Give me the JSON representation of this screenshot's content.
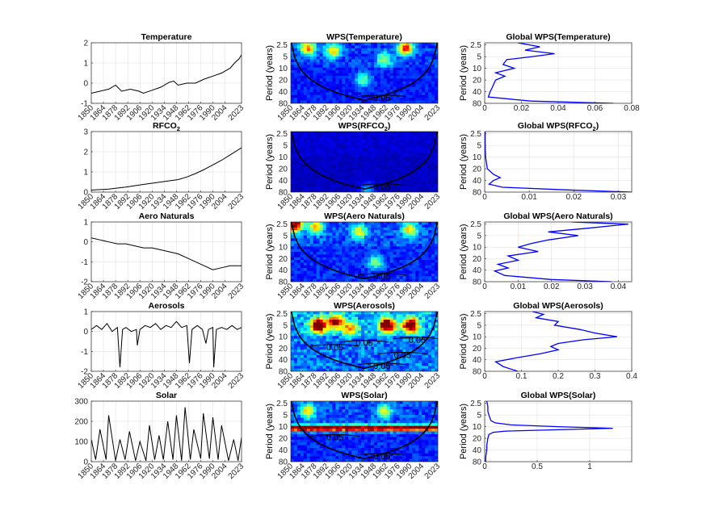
{
  "figure": {
    "background": "#ffffff",
    "colors": {
      "series": "#000000",
      "gws": "#0000ff",
      "grid": "#dcdcdc",
      "coi": "#000000",
      "contour": "#000000"
    }
  },
  "chart_data": [
    {
      "id": "ts-temperature",
      "type": "line",
      "panel": "time-series",
      "title": "Temperature",
      "xlabel": "",
      "ylabel": "",
      "xlim": [
        1850,
        2023
      ],
      "ylim": [
        -1,
        2
      ],
      "xticks": [
        1850,
        1864,
        1878,
        1892,
        1906,
        1920,
        1934,
        1948,
        1962,
        1976,
        1990,
        2004,
        2023
      ],
      "yticks": [
        -1,
        0,
        1,
        2
      ],
      "series": [
        {
          "name": "Temperature",
          "x": [
            1850,
            1860,
            1870,
            1878,
            1885,
            1895,
            1905,
            1910,
            1920,
            1930,
            1940,
            1945,
            1950,
            1960,
            1970,
            1980,
            1990,
            2000,
            2010,
            2015,
            2020,
            2023
          ],
          "values": [
            -0.5,
            -0.4,
            -0.3,
            -0.1,
            -0.4,
            -0.3,
            -0.4,
            -0.5,
            -0.35,
            -0.2,
            0.05,
            0.1,
            -0.1,
            0.0,
            0.0,
            0.2,
            0.35,
            0.5,
            0.75,
            1.0,
            1.2,
            1.4
          ]
        }
      ]
    },
    {
      "id": "ts-rfco2",
      "type": "line",
      "panel": "time-series",
      "title": "RFCO",
      "title_sub": "2",
      "xlabel": "",
      "ylabel": "",
      "xlim": [
        1850,
        2023
      ],
      "ylim": [
        0,
        3
      ],
      "xticks": [
        1850,
        1864,
        1878,
        1892,
        1906,
        1920,
        1934,
        1948,
        1962,
        1976,
        1990,
        2004,
        2023
      ],
      "yticks": [
        0,
        1,
        2,
        3
      ],
      "series": [
        {
          "name": "RFCO2",
          "x": [
            1850,
            1870,
            1890,
            1910,
            1930,
            1950,
            1960,
            1970,
            1980,
            1990,
            2000,
            2010,
            2023
          ],
          "values": [
            0.1,
            0.15,
            0.25,
            0.38,
            0.5,
            0.62,
            0.75,
            0.92,
            1.12,
            1.35,
            1.58,
            1.85,
            2.2
          ]
        }
      ]
    },
    {
      "id": "ts-aero-naturals",
      "type": "line",
      "panel": "time-series",
      "title": "Aero Naturals",
      "xlabel": "",
      "ylabel": "",
      "xlim": [
        1850,
        2023
      ],
      "ylim": [
        -2,
        1
      ],
      "xticks": [
        1850,
        1864,
        1878,
        1892,
        1906,
        1920,
        1934,
        1948,
        1962,
        1976,
        1990,
        2004,
        2023
      ],
      "yticks": [
        -2,
        -1,
        0,
        1
      ],
      "series": [
        {
          "name": "Aero Naturals",
          "x": [
            1850,
            1860,
            1870,
            1880,
            1890,
            1900,
            1910,
            1920,
            1930,
            1940,
            1950,
            1960,
            1970,
            1980,
            1990,
            2000,
            2010,
            2023
          ],
          "values": [
            0.2,
            0.1,
            0.0,
            -0.1,
            -0.1,
            -0.2,
            -0.3,
            -0.3,
            -0.4,
            -0.5,
            -0.6,
            -0.8,
            -1.0,
            -1.2,
            -1.4,
            -1.3,
            -1.2,
            -1.2
          ]
        }
      ]
    },
    {
      "id": "ts-aerosols",
      "type": "line",
      "panel": "time-series",
      "title": "Aerosols",
      "xlabel": "",
      "ylabel": "",
      "xlim": [
        1850,
        2023
      ],
      "ylim": [
        -2,
        1
      ],
      "xticks": [
        1850,
        1864,
        1878,
        1892,
        1906,
        1920,
        1934,
        1948,
        1962,
        1976,
        1990,
        2004,
        2023
      ],
      "yticks": [
        -2,
        -1,
        0,
        1
      ],
      "series": [
        {
          "name": "Aerosols",
          "x": [
            1850,
            1856,
            1862,
            1868,
            1874,
            1880,
            1883,
            1886,
            1890,
            1896,
            1902,
            1903,
            1906,
            1912,
            1918,
            1924,
            1930,
            1936,
            1942,
            1948,
            1954,
            1960,
            1963,
            1966,
            1972,
            1978,
            1982,
            1985,
            1990,
            1991,
            1994,
            2000,
            2006,
            2012,
            2018,
            2023
          ],
          "values": [
            0.1,
            0.3,
            0.1,
            0.4,
            0.0,
            0.2,
            -1.8,
            0.1,
            0.2,
            0.0,
            0.1,
            -0.7,
            0.1,
            0.3,
            0.2,
            0.4,
            0.1,
            0.3,
            0.2,
            0.5,
            0.2,
            0.3,
            -1.6,
            0.1,
            0.3,
            0.1,
            -0.6,
            0.1,
            0.2,
            -1.8,
            0.1,
            0.2,
            0.1,
            0.3,
            0.1,
            0.2
          ]
        }
      ]
    },
    {
      "id": "ts-solar",
      "type": "line",
      "panel": "time-series",
      "title": "Solar",
      "xlabel": "",
      "ylabel": "",
      "xlim": [
        1850,
        2023
      ],
      "ylim": [
        0,
        300
      ],
      "xticks": [
        1850,
        1864,
        1878,
        1892,
        1906,
        1920,
        1934,
        1948,
        1962,
        1976,
        1990,
        2004,
        2023
      ],
      "yticks": [
        0,
        100,
        200,
        300
      ],
      "series": [
        {
          "name": "Solar",
          "x": [
            1850,
            1855,
            1860,
            1867,
            1870,
            1878,
            1883,
            1889,
            1894,
            1901,
            1906,
            1913,
            1917,
            1923,
            1928,
            1933,
            1938,
            1944,
            1948,
            1954,
            1958,
            1964,
            1968,
            1976,
            1979,
            1986,
            1990,
            1996,
            2000,
            2008,
            2014,
            2019,
            2023
          ],
          "values": [
            110,
            10,
            160,
            10,
            230,
            5,
            110,
            10,
            150,
            5,
            100,
            5,
            180,
            10,
            130,
            10,
            200,
            10,
            230,
            5,
            270,
            10,
            160,
            15,
            240,
            15,
            220,
            10,
            180,
            5,
            110,
            5,
            120
          ]
        }
      ]
    },
    {
      "id": "wps-temperature",
      "type": "heatmap",
      "panel": "wavelet",
      "title": "WPS(Temperature)",
      "ylabel": "Period (years)",
      "xlim": [
        1850,
        2023
      ],
      "xticks": [
        1850,
        1864,
        1878,
        1892,
        1906,
        1920,
        1934,
        1948,
        1962,
        1976,
        1990,
        2004,
        2023
      ],
      "yticks": [
        2.5,
        5,
        10,
        20,
        40,
        80
      ],
      "yscale": "log2",
      "yreversed": true,
      "contour_labels": [
        "0.05"
      ],
      "hot_spots": [
        {
          "x": 1870,
          "period": 3,
          "level": 0.6
        },
        {
          "x": 1900,
          "period": 3.5,
          "level": 0.5
        },
        {
          "x": 1985,
          "period": 3,
          "level": 0.7
        },
        {
          "x": 1960,
          "period": 6,
          "level": 0.4
        },
        {
          "x": 1935,
          "period": 20,
          "level": 0.35
        }
      ],
      "base_level": 0.18
    },
    {
      "id": "wps-rfco2",
      "type": "heatmap",
      "panel": "wavelet",
      "title": "WPS(RFCO",
      "title_sub": "2",
      "title_end": ")",
      "ylabel": "Period (years)",
      "xlim": [
        1850,
        2023
      ],
      "xticks": [
        1850,
        1864,
        1878,
        1892,
        1906,
        1920,
        1934,
        1948,
        1962,
        1976,
        1990,
        2004,
        2023
      ],
      "yticks": [
        2.5,
        5,
        10,
        20,
        40,
        80
      ],
      "yscale": "log2",
      "yreversed": true,
      "contour_labels": [
        "0.05"
      ],
      "hot_spots": [
        {
          "x": 1940,
          "period": 70,
          "level": 0.25
        }
      ],
      "base_level": 0.08
    },
    {
      "id": "wps-aero-naturals",
      "type": "heatmap",
      "panel": "wavelet",
      "title": "WPS(Aero Naturals)",
      "ylabel": "Period (years)",
      "xlim": [
        1850,
        2023
      ],
      "xticks": [
        1850,
        1864,
        1878,
        1892,
        1906,
        1920,
        1934,
        1948,
        1962,
        1976,
        1990,
        2004,
        2023
      ],
      "yticks": [
        2.5,
        5,
        10,
        20,
        40,
        80
      ],
      "yscale": "log2",
      "yreversed": true,
      "contour_labels": [
        "0.05"
      ],
      "hot_spots": [
        {
          "x": 1855,
          "period": 2.6,
          "level": 0.9
        },
        {
          "x": 1880,
          "period": 3,
          "level": 0.5
        },
        {
          "x": 1930,
          "period": 4,
          "level": 0.45
        },
        {
          "x": 1990,
          "period": 3.5,
          "level": 0.5
        },
        {
          "x": 1950,
          "period": 25,
          "level": 0.35
        }
      ],
      "base_level": 0.2
    },
    {
      "id": "wps-aerosols",
      "type": "heatmap",
      "panel": "wavelet",
      "title": "WPS(Aerosols)",
      "ylabel": "Period (years)",
      "xlim": [
        1850,
        2023
      ],
      "xticks": [
        1850,
        1864,
        1878,
        1892,
        1906,
        1920,
        1934,
        1948,
        1962,
        1976,
        1990,
        2004,
        2023
      ],
      "yticks": [
        2.5,
        5,
        10,
        20,
        40,
        80
      ],
      "yscale": "log2",
      "yreversed": true,
      "contour_labels": [
        "0.05",
        "0.05",
        "0.05",
        "0.05",
        "0.05"
      ],
      "hot_spots": [
        {
          "x": 1883,
          "period": 5,
          "level": 1.0
        },
        {
          "x": 1963,
          "period": 5,
          "level": 1.0
        },
        {
          "x": 1991,
          "period": 5,
          "level": 0.95
        },
        {
          "x": 1903,
          "period": 4,
          "level": 0.7
        },
        {
          "x": 1920,
          "period": 6,
          "level": 0.5
        }
      ],
      "base_level": 0.3
    },
    {
      "id": "wps-solar",
      "type": "heatmap",
      "panel": "wavelet",
      "title": "WPS(Solar)",
      "ylabel": "Period (years)",
      "xlim": [
        1850,
        2023
      ],
      "xticks": [
        1850,
        1864,
        1878,
        1892,
        1906,
        1920,
        1934,
        1948,
        1962,
        1976,
        1990,
        2004,
        2023
      ],
      "yticks": [
        2.5,
        5,
        10,
        20,
        40,
        80
      ],
      "yscale": "log2",
      "yreversed": true,
      "contour_labels": [
        "0.05",
        "0.05"
      ],
      "band": {
        "period": 11,
        "level": 1.0
      },
      "hot_spots": [
        {
          "x": 1870,
          "period": 4,
          "level": 0.45
        },
        {
          "x": 1960,
          "period": 4,
          "level": 0.4
        }
      ],
      "base_level": 0.2
    },
    {
      "id": "gws-temperature",
      "type": "line",
      "panel": "global-wps",
      "title": "Global WPS(Temperature)",
      "ylabel": "Period (years)",
      "xlim": [
        0,
        0.08
      ],
      "xticks": [
        0,
        0.02,
        0.04,
        0.06,
        0.08
      ],
      "xtick_labels": [
        "0",
        "0.02",
        "0.04",
        "0.06",
        "0.08"
      ],
      "yticks": [
        2.5,
        5,
        10,
        20,
        40,
        80
      ],
      "yscale": "log2",
      "yreversed": true,
      "series": [
        {
          "name": "Global WPS",
          "period": [
            2.2,
            2.8,
            3.4,
            4.2,
            5,
            6,
            8,
            10,
            13,
            16,
            20,
            25,
            32,
            40,
            55,
            70,
            80
          ],
          "values": [
            0.018,
            0.03,
            0.022,
            0.038,
            0.026,
            0.012,
            0.01,
            0.016,
            0.006,
            0.011,
            0.006,
            0.005,
            0.004,
            0.003,
            0.002,
            0.025,
            0.07
          ]
        }
      ]
    },
    {
      "id": "gws-rfco2",
      "type": "line",
      "panel": "global-wps",
      "title": "Global WPS(RFCO",
      "title_sub": "2",
      "title_end": ")",
      "ylabel": "Period (years)",
      "xlim": [
        0,
        0.033
      ],
      "xticks": [
        0,
        0.01,
        0.02,
        0.03
      ],
      "xtick_labels": [
        "0",
        "0.01",
        "0.02",
        "0.03"
      ],
      "yticks": [
        2.5,
        5,
        10,
        20,
        40,
        80
      ],
      "yscale": "log2",
      "yreversed": true,
      "series": [
        {
          "name": "Global WPS",
          "period": [
            2.2,
            5,
            10,
            20,
            28,
            34,
            40,
            50,
            60,
            70,
            80
          ],
          "values": [
            0.0001,
            0.0001,
            0.0002,
            0.0006,
            0.002,
            0.0035,
            0.002,
            0.001,
            0.004,
            0.018,
            0.033
          ]
        }
      ]
    },
    {
      "id": "gws-aero-naturals",
      "type": "line",
      "panel": "global-wps",
      "title": "Global WPS(Aero Naturals)",
      "ylabel": "Period (years)",
      "xlim": [
        0,
        0.044
      ],
      "xticks": [
        0,
        0.01,
        0.02,
        0.03,
        0.04
      ],
      "xtick_labels": [
        "0",
        "0.01",
        "0.02",
        "0.03",
        "0.04"
      ],
      "yticks": [
        2.5,
        5,
        10,
        20,
        40,
        80
      ],
      "yscale": "log2",
      "yreversed": true,
      "series": [
        {
          "name": "Global WPS",
          "period": [
            2.2,
            2.5,
            3.2,
            4,
            5,
            6.5,
            8,
            10,
            13,
            17,
            22,
            28,
            35,
            42,
            55,
            70,
            80
          ],
          "values": [
            0.026,
            0.043,
            0.031,
            0.019,
            0.028,
            0.019,
            0.014,
            0.01,
            0.016,
            0.007,
            0.01,
            0.004,
            0.007,
            0.003,
            0.006,
            0.02,
            0.038
          ]
        }
      ]
    },
    {
      "id": "gws-aerosols",
      "type": "line",
      "panel": "global-wps",
      "title": "Global WPS(Aerosols)",
      "ylabel": "Period (years)",
      "xlim": [
        0,
        0.4
      ],
      "xticks": [
        0,
        0.1,
        0.2,
        0.3,
        0.4
      ],
      "xtick_labels": [
        "0",
        "0.1",
        "0.2",
        "0.3",
        "0.4"
      ],
      "yticks": [
        2.5,
        5,
        10,
        20,
        40,
        80
      ],
      "yscale": "log2",
      "yreversed": true,
      "series": [
        {
          "name": "Global WPS",
          "period": [
            2.2,
            2.6,
            3.2,
            4,
            5,
            6.5,
            8,
            10,
            12,
            15,
            18,
            22,
            28,
            35,
            45,
            60,
            80
          ],
          "values": [
            0.13,
            0.16,
            0.14,
            0.2,
            0.19,
            0.26,
            0.3,
            0.36,
            0.27,
            0.2,
            0.18,
            0.2,
            0.15,
            0.09,
            0.03,
            0.05,
            0.09
          ]
        }
      ]
    },
    {
      "id": "gws-solar",
      "type": "line",
      "panel": "global-wps",
      "title": "Global WPS(Solar)",
      "ylabel": "Period (years)",
      "xlim": [
        0,
        1.4
      ],
      "xticks": [
        0,
        0.5,
        1
      ],
      "xtick_labels": [
        "0",
        "0.5",
        "1"
      ],
      "yticks": [
        2.5,
        5,
        10,
        20,
        40,
        80
      ],
      "yscale": "log2",
      "yreversed": true,
      "series": [
        {
          "name": "Global WPS",
          "period": [
            2.2,
            3,
            4,
            5,
            6,
            7,
            8,
            9,
            10,
            11,
            12,
            13,
            14,
            16,
            20,
            30,
            40,
            60,
            80
          ],
          "values": [
            0.02,
            0.03,
            0.03,
            0.04,
            0.05,
            0.06,
            0.1,
            0.25,
            0.7,
            1.22,
            0.7,
            0.2,
            0.08,
            0.04,
            0.03,
            0.02,
            0.02,
            0.01,
            0.01
          ]
        }
      ]
    }
  ]
}
